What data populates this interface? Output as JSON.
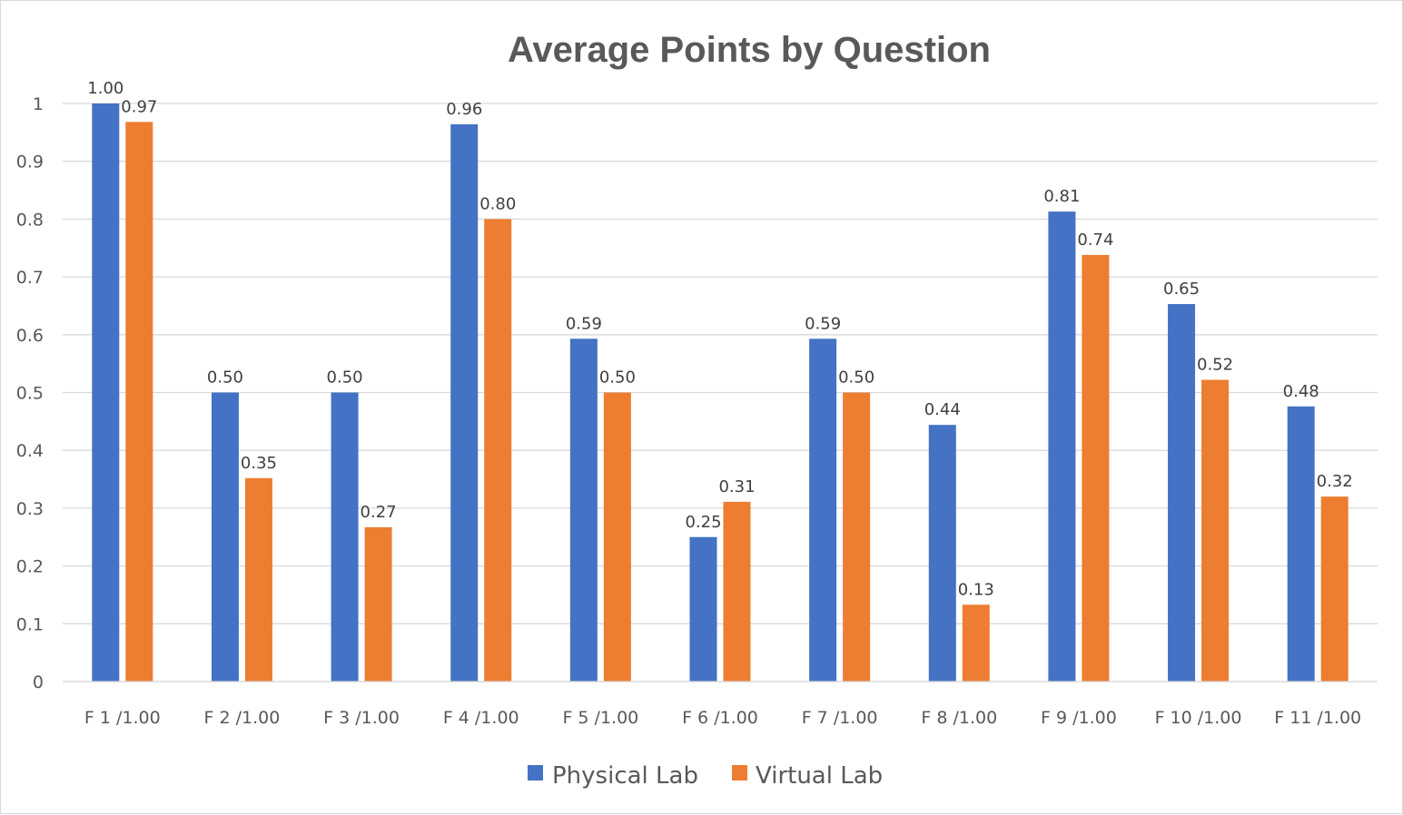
{
  "chart_data": {
    "type": "bar",
    "title": "Average Points by Question",
    "categories": [
      "F 1 /1.00",
      "F 2 /1.00",
      "F 3 /1.00",
      "F 4 /1.00",
      "F 5 /1.00",
      "F 6 /1.00",
      "F 7 /1.00",
      "F 8 /1.00",
      "F 9 /1.00",
      "F 10 /1.00",
      "F 11 /1.00"
    ],
    "series": [
      {
        "name": "Physical Lab",
        "color": "#4472c4",
        "values": [
          1.0,
          0.5,
          0.5,
          0.964,
          0.593,
          0.25,
          0.593,
          0.444,
          0.813,
          0.653,
          0.476
        ],
        "labels": [
          "1.00",
          "0.50",
          "0.50",
          "0.96",
          "0.59",
          "0.25",
          "0.59",
          "0.44",
          "0.81",
          "0.65",
          "0.48"
        ]
      },
      {
        "name": "Virtual Lab",
        "color": "#ed7d31",
        "values": [
          0.968,
          0.352,
          0.267,
          0.8,
          0.5,
          0.311,
          0.5,
          0.133,
          0.738,
          0.522,
          0.32
        ],
        "labels": [
          "0.97",
          "0.35",
          "0.27",
          "0.80",
          "0.50",
          "0.31",
          "0.50",
          "0.13",
          "0.74",
          "0.52",
          "0.32"
        ]
      }
    ],
    "ylim": [
      0,
      1
    ],
    "yticks": [
      "0",
      "0.1",
      "0.2",
      "0.3",
      "0.4",
      "0.5",
      "0.6",
      "0.7",
      "0.8",
      "0.9",
      "1"
    ],
    "grid": true,
    "legend": "bottom"
  }
}
